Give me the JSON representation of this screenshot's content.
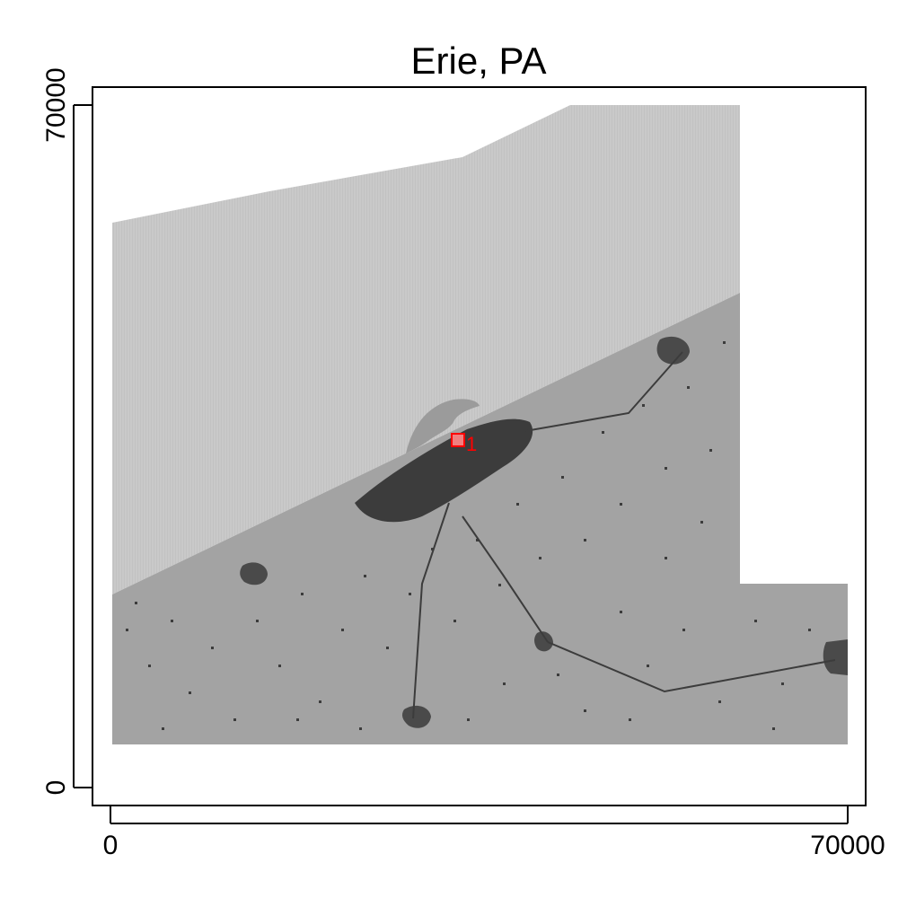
{
  "title": "Erie, PA",
  "colors": {
    "water": "#c7c7c7",
    "land": "#a3a3a3",
    "urban": "#3c3c3c",
    "wetland": "#9b9b9b",
    "marker": "#ff0000",
    "marker_fill": "#f08080",
    "axis": "#000000"
  },
  "chart_data": {
    "type": "map",
    "xlim": [
      0,
      70000
    ],
    "ylim": [
      0,
      70000
    ],
    "x_ticks": [
      {
        "value": 0,
        "label": "0"
      },
      {
        "value": 70000,
        "label": "70000"
      }
    ],
    "y_ticks": [
      {
        "value": 0,
        "label": "0"
      },
      {
        "value": 70000,
        "label": "70000"
      }
    ],
    "markers": [
      {
        "x": 33000,
        "y": 35000,
        "label": "1"
      }
    ],
    "legend": "none",
    "grid": false
  }
}
